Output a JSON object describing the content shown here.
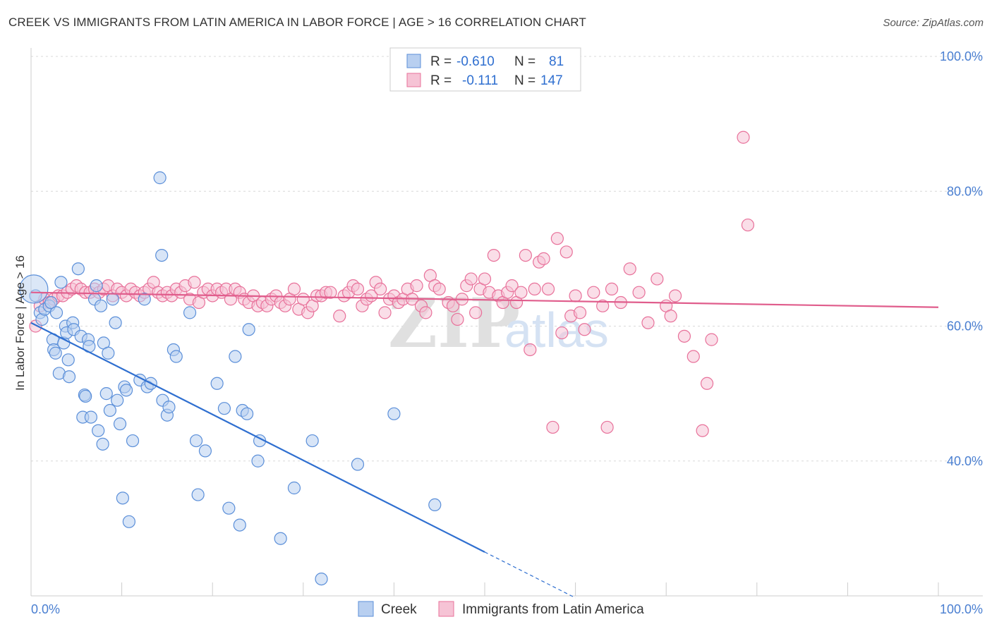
{
  "title": "CREEK VS IMMIGRANTS FROM LATIN AMERICA IN LABOR FORCE | AGE > 16 CORRELATION CHART",
  "source": "Source: ZipAtlas.com",
  "watermark": {
    "zip": "ZIP",
    "atlas": "atlas"
  },
  "colors": {
    "creek": "#5b8fd9",
    "creek_fill": "#b8cff0",
    "latin": "#e8719a",
    "latin_fill": "#f6c3d5",
    "tick_label": "#4a7fd1"
  },
  "legend": {
    "rows": [
      {
        "r_label": "R =",
        "r_value": "-0.610",
        "n_label": "N =",
        "n_value": "81"
      },
      {
        "r_label": "R =",
        "r_value": "-0.111",
        "n_label": "N =",
        "n_value": "147"
      }
    ]
  },
  "bottom_legend": [
    "Creek",
    "Immigrants from Latin America"
  ],
  "chart_data": {
    "type": "scatter",
    "ylabel": "In Labor Force | Age > 16",
    "xlim": [
      0,
      100
    ],
    "ylim": [
      20,
      100
    ],
    "x_tick_labels": [
      "0.0%",
      "100.0%"
    ],
    "y_ticks": [
      40,
      60,
      80,
      100
    ],
    "y_tick_labels": [
      "40.0%",
      "60.0%",
      "80.0%",
      "100.0%"
    ],
    "grid": true,
    "series": [
      {
        "name": "Creek",
        "points": [
          [
            0.5,
            64.5
          ],
          [
            1.0,
            62.0
          ],
          [
            1.2,
            61.0
          ],
          [
            1.5,
            62.5
          ],
          [
            2.0,
            63.0
          ],
          [
            2.2,
            63.5
          ],
          [
            2.4,
            58.0
          ],
          [
            2.5,
            56.5
          ],
          [
            2.7,
            56.0
          ],
          [
            2.8,
            62.0
          ],
          [
            3.1,
            53.0
          ],
          [
            3.3,
            66.5
          ],
          [
            3.6,
            57.5
          ],
          [
            3.8,
            60.0
          ],
          [
            3.9,
            59.0
          ],
          [
            4.1,
            55.0
          ],
          [
            4.2,
            52.5
          ],
          [
            4.6,
            60.5
          ],
          [
            4.7,
            59.5
          ],
          [
            5.2,
            68.5
          ],
          [
            5.5,
            58.5
          ],
          [
            5.7,
            46.5
          ],
          [
            5.9,
            49.8
          ],
          [
            6.0,
            49.6
          ],
          [
            6.3,
            58.0
          ],
          [
            6.4,
            57.0
          ],
          [
            6.6,
            46.5
          ],
          [
            7.0,
            64.0
          ],
          [
            7.2,
            66.0
          ],
          [
            7.4,
            44.5
          ],
          [
            7.7,
            63.0
          ],
          [
            7.9,
            42.5
          ],
          [
            8.0,
            57.5
          ],
          [
            8.3,
            50.0
          ],
          [
            8.5,
            56.0
          ],
          [
            8.7,
            47.5
          ],
          [
            9.0,
            64.0
          ],
          [
            9.3,
            60.5
          ],
          [
            9.5,
            49.0
          ],
          [
            9.8,
            45.5
          ],
          [
            10.1,
            34.5
          ],
          [
            10.3,
            51.0
          ],
          [
            10.5,
            50.5
          ],
          [
            10.8,
            31.0
          ],
          [
            11.2,
            43.0
          ],
          [
            12.0,
            52.0
          ],
          [
            12.5,
            64.0
          ],
          [
            12.8,
            51.0
          ],
          [
            13.2,
            51.5
          ],
          [
            14.2,
            82.0
          ],
          [
            14.4,
            70.5
          ],
          [
            14.5,
            49.0
          ],
          [
            15.0,
            46.8
          ],
          [
            15.7,
            56.5
          ],
          [
            15.2,
            48.0
          ],
          [
            16.0,
            55.5
          ],
          [
            17.5,
            62.0
          ],
          [
            18.2,
            43.0
          ],
          [
            18.4,
            35.0
          ],
          [
            19.2,
            41.5
          ],
          [
            20.5,
            51.5
          ],
          [
            21.3,
            47.8
          ],
          [
            21.8,
            33.0
          ],
          [
            22.5,
            55.5
          ],
          [
            23.0,
            30.5
          ],
          [
            23.3,
            47.5
          ],
          [
            23.8,
            47.0
          ],
          [
            24.0,
            59.5
          ],
          [
            25.0,
            40.0
          ],
          [
            25.2,
            43.0
          ],
          [
            27.5,
            28.5
          ],
          [
            29.0,
            36.0
          ],
          [
            31.0,
            43.0
          ],
          [
            32.0,
            22.5
          ],
          [
            36.0,
            39.5
          ],
          [
            40.0,
            47.0
          ],
          [
            44.5,
            33.5
          ]
        ],
        "trend": {
          "x": [
            0,
            50
          ],
          "y": [
            60.5,
            26.5
          ]
        },
        "trend_dashed": {
          "x": [
            50,
            60
          ],
          "y": [
            26.5,
            19.7
          ]
        }
      },
      {
        "name": "Immigrants from Latin America",
        "points": [
          [
            0.5,
            60.0
          ],
          [
            1.0,
            63.0
          ],
          [
            1.5,
            64.0
          ],
          [
            2.0,
            63.5
          ],
          [
            2.5,
            64.0
          ],
          [
            3.0,
            64.5
          ],
          [
            3.5,
            64.5
          ],
          [
            4.0,
            65.0
          ],
          [
            4.5,
            65.5
          ],
          [
            5.0,
            66.0
          ],
          [
            5.5,
            65.5
          ],
          [
            6.0,
            65.0
          ],
          [
            6.5,
            65.0
          ],
          [
            7.0,
            65.5
          ],
          [
            7.5,
            65.0
          ],
          [
            8.0,
            65.5
          ],
          [
            8.5,
            66.0
          ],
          [
            9.0,
            64.5
          ],
          [
            9.5,
            65.5
          ],
          [
            10.0,
            65.0
          ],
          [
            10.5,
            64.5
          ],
          [
            11.0,
            65.5
          ],
          [
            11.5,
            65.0
          ],
          [
            12.0,
            64.5
          ],
          [
            12.5,
            65.0
          ],
          [
            13.0,
            65.5
          ],
          [
            13.5,
            66.5
          ],
          [
            14.0,
            65.0
          ],
          [
            14.5,
            64.5
          ],
          [
            15.0,
            65.0
          ],
          [
            15.5,
            64.5
          ],
          [
            16.0,
            65.5
          ],
          [
            16.5,
            65.0
          ],
          [
            17.0,
            66.0
          ],
          [
            17.5,
            64.0
          ],
          [
            18.0,
            66.5
          ],
          [
            18.5,
            63.5
          ],
          [
            19.0,
            65.0
          ],
          [
            19.5,
            65.5
          ],
          [
            20.0,
            64.5
          ],
          [
            20.5,
            65.5
          ],
          [
            21.0,
            65.0
          ],
          [
            21.5,
            65.5
          ],
          [
            22.0,
            64.0
          ],
          [
            22.5,
            65.5
          ],
          [
            23.0,
            65.0
          ],
          [
            23.5,
            64.0
          ],
          [
            24.0,
            63.5
          ],
          [
            24.5,
            64.5
          ],
          [
            25.0,
            63.0
          ],
          [
            25.5,
            63.5
          ],
          [
            26.0,
            63.0
          ],
          [
            26.5,
            64.0
          ],
          [
            27.0,
            64.5
          ],
          [
            27.5,
            63.5
          ],
          [
            28.0,
            63.0
          ],
          [
            28.5,
            64.0
          ],
          [
            29.0,
            65.5
          ],
          [
            29.5,
            62.5
          ],
          [
            30.0,
            64.0
          ],
          [
            30.5,
            62.0
          ],
          [
            31.0,
            63.0
          ],
          [
            31.5,
            64.5
          ],
          [
            32.0,
            64.5
          ],
          [
            32.5,
            65.0
          ],
          [
            33.0,
            65.0
          ],
          [
            34.0,
            61.5
          ],
          [
            34.5,
            64.5
          ],
          [
            35.0,
            65.0
          ],
          [
            35.5,
            66.0
          ],
          [
            36.0,
            65.5
          ],
          [
            36.5,
            63.0
          ],
          [
            37.0,
            64.0
          ],
          [
            37.5,
            64.5
          ],
          [
            38.0,
            66.5
          ],
          [
            38.5,
            65.5
          ],
          [
            39.0,
            62.0
          ],
          [
            39.5,
            64.0
          ],
          [
            40.0,
            64.5
          ],
          [
            40.5,
            63.5
          ],
          [
            41.0,
            64.0
          ],
          [
            41.5,
            65.5
          ],
          [
            42.0,
            64.0
          ],
          [
            42.5,
            66.0
          ],
          [
            43.0,
            63.0
          ],
          [
            43.5,
            62.0
          ],
          [
            44.0,
            67.5
          ],
          [
            44.5,
            66.0
          ],
          [
            45.0,
            65.5
          ],
          [
            46.0,
            63.5
          ],
          [
            46.5,
            63.0
          ],
          [
            47.0,
            61.0
          ],
          [
            47.5,
            64.0
          ],
          [
            48.0,
            66.0
          ],
          [
            48.5,
            67.0
          ],
          [
            49.0,
            62.0
          ],
          [
            49.5,
            65.5
          ],
          [
            50.0,
            67.0
          ],
          [
            50.5,
            65.0
          ],
          [
            51.0,
            70.5
          ],
          [
            51.5,
            64.5
          ],
          [
            52.0,
            63.5
          ],
          [
            52.5,
            65.0
          ],
          [
            53.0,
            66.0
          ],
          [
            53.5,
            63.5
          ],
          [
            54.0,
            65.0
          ],
          [
            54.5,
            70.5
          ],
          [
            55.0,
            56.5
          ],
          [
            55.5,
            65.5
          ],
          [
            56.0,
            69.5
          ],
          [
            56.5,
            70.0
          ],
          [
            57.0,
            65.5
          ],
          [
            57.5,
            45.0
          ],
          [
            58.0,
            73.0
          ],
          [
            58.5,
            59.0
          ],
          [
            59.0,
            71.0
          ],
          [
            59.5,
            61.5
          ],
          [
            60.0,
            64.5
          ],
          [
            60.5,
            62.0
          ],
          [
            61.0,
            59.5
          ],
          [
            62.0,
            65.0
          ],
          [
            63.0,
            63.0
          ],
          [
            63.5,
            45.0
          ],
          [
            64.0,
            65.5
          ],
          [
            65.0,
            63.5
          ],
          [
            66.0,
            68.5
          ],
          [
            67.0,
            65.0
          ],
          [
            68.0,
            60.5
          ],
          [
            69.0,
            67.0
          ],
          [
            70.0,
            63.0
          ],
          [
            70.5,
            61.5
          ],
          [
            71.0,
            64.5
          ],
          [
            72.0,
            58.5
          ],
          [
            73.0,
            55.5
          ],
          [
            74.0,
            44.5
          ],
          [
            74.5,
            51.5
          ],
          [
            75.0,
            58.0
          ],
          [
            79.0,
            75.0
          ],
          [
            78.5,
            88.0
          ]
        ],
        "trend": {
          "x": [
            0,
            100
          ],
          "y": [
            65.0,
            62.8
          ]
        }
      }
    ]
  }
}
